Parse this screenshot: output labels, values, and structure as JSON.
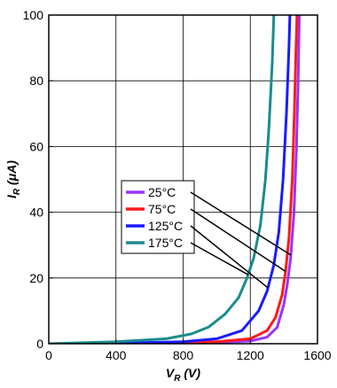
{
  "chart_data": {
    "type": "line",
    "xlabel_main": "V",
    "xlabel_sub": "R",
    "xlabel_unit": " (V)",
    "ylabel_main": "I",
    "ylabel_sub": "R",
    "ylabel_unit": " (μA)",
    "xlim": [
      0,
      1600
    ],
    "ylim": [
      0,
      100
    ],
    "xticks": [
      0,
      400,
      800,
      1200,
      1600
    ],
    "yticks": [
      0,
      20,
      40,
      60,
      80,
      100
    ],
    "grid": true,
    "legend_position": "center-left",
    "series": [
      {
        "name": "25°C",
        "color": "#9933ff",
        "points": [
          [
            0,
            0
          ],
          [
            400,
            0.05
          ],
          [
            800,
            0.2
          ],
          [
            1000,
            0.4
          ],
          [
            1200,
            0.8
          ],
          [
            1300,
            2
          ],
          [
            1360,
            5
          ],
          [
            1400,
            12
          ],
          [
            1420,
            18
          ],
          [
            1440,
            26
          ],
          [
            1460,
            40
          ],
          [
            1475,
            60
          ],
          [
            1485,
            80
          ],
          [
            1492,
            100
          ]
        ]
      },
      {
        "name": "75°C",
        "color": "#ff1a1a",
        "points": [
          [
            0,
            0
          ],
          [
            400,
            0.08
          ],
          [
            800,
            0.3
          ],
          [
            1000,
            0.6
          ],
          [
            1200,
            1.5
          ],
          [
            1300,
            4
          ],
          [
            1350,
            8
          ],
          [
            1390,
            15
          ],
          [
            1410,
            22
          ],
          [
            1430,
            32
          ],
          [
            1450,
            50
          ],
          [
            1462,
            70
          ],
          [
            1472,
            90
          ],
          [
            1478,
            100
          ]
        ]
      },
      {
        "name": "125°C",
        "color": "#1a1aff",
        "points": [
          [
            0,
            0
          ],
          [
            400,
            0.15
          ],
          [
            800,
            0.6
          ],
          [
            1000,
            1.5
          ],
          [
            1150,
            4
          ],
          [
            1250,
            10
          ],
          [
            1300,
            16
          ],
          [
            1340,
            24
          ],
          [
            1370,
            34
          ],
          [
            1395,
            50
          ],
          [
            1415,
            70
          ],
          [
            1430,
            90
          ],
          [
            1436,
            100
          ]
        ]
      },
      {
        "name": "175°C",
        "color": "#1a8c8c",
        "points": [
          [
            0,
            0
          ],
          [
            400,
            0.6
          ],
          [
            700,
            1.5
          ],
          [
            850,
            3
          ],
          [
            950,
            5
          ],
          [
            1050,
            9
          ],
          [
            1130,
            14
          ],
          [
            1180,
            20
          ],
          [
            1220,
            26
          ],
          [
            1260,
            36
          ],
          [
            1290,
            50
          ],
          [
            1310,
            65
          ],
          [
            1330,
            85
          ],
          [
            1340,
            100
          ]
        ]
      }
    ]
  }
}
